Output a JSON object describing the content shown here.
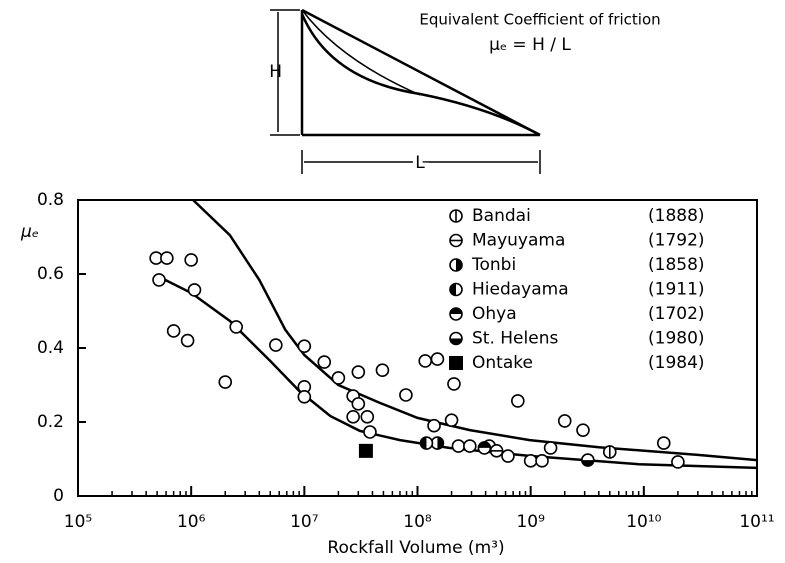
{
  "diagram": {
    "title": "Equivalent Coefficient of friction",
    "formula": "μₑ = H / L",
    "height_label": "H",
    "length_label": "L"
  },
  "chart_data": {
    "type": "scatter",
    "x_label": "Rockfall Volume (m³)",
    "y_label": "μₑ",
    "xlog": true,
    "xlim": [
      100000,
      100000000000
    ],
    "xticks": [
      {
        "value": 100000,
        "label": "10⁵"
      },
      {
        "value": 1000000,
        "label": "10⁶"
      },
      {
        "value": 10000000,
        "label": "10⁷"
      },
      {
        "value": 100000000,
        "label": "10⁸"
      },
      {
        "value": 1000000000,
        "label": "10⁹"
      },
      {
        "value": 10000000000,
        "label": "10¹⁰"
      },
      {
        "value": 100000000000,
        "label": "10¹¹"
      }
    ],
    "ylim": [
      0,
      0.8
    ],
    "yticks": [
      0,
      0.2,
      0.4,
      0.6,
      0.8
    ],
    "legend": "upper right",
    "series": [
      {
        "marker": "circle",
        "color": "#000000",
        "x": [
          490000,
          610000,
          520000,
          1000000,
          1070000,
          700000,
          930000,
          2000000,
          2500000,
          5600000,
          10000000,
          10000000,
          10000000,
          15000000,
          20000000,
          27000000,
          30000000,
          30000000,
          27000000,
          36000000,
          38000000,
          49000000,
          79000000,
          117000000,
          150000000,
          210000000,
          140000000,
          200000000,
          230000000,
          290000000,
          430000000,
          630000000,
          770000000,
          1000000000,
          1260000000,
          1500000000,
          2000000000,
          2900000000,
          15000000000,
          20000000000
        ],
        "values": [
          0.643,
          0.643,
          0.584,
          0.638,
          0.557,
          0.446,
          0.42,
          0.308,
          0.457,
          0.408,
          0.405,
          0.295,
          0.268,
          0.362,
          0.319,
          0.27,
          0.335,
          0.249,
          0.214,
          0.214,
          0.173,
          0.34,
          0.273,
          0.365,
          0.37,
          0.303,
          0.19,
          0.205,
          0.135,
          0.135,
          0.135,
          0.108,
          0.257,
          0.095,
          0.095,
          0.13,
          0.203,
          0.178,
          0.143,
          0.092
        ]
      },
      {
        "name": "Bandai",
        "year": "(1888)",
        "marker": "circle-vline",
        "color": "#000000",
        "x": [
          5000000000
        ],
        "values": [
          0.119
        ]
      },
      {
        "name": "Mayuyama",
        "year": "(1792)",
        "marker": "circle-hline",
        "color": "#000000",
        "x": [
          500000000
        ],
        "values": [
          0.122
        ]
      },
      {
        "name": "Tonbi",
        "year": "(1858)",
        "marker": "half-right",
        "color": "#000000",
        "x": [
          150000000
        ],
        "values": [
          0.143
        ]
      },
      {
        "name": "Hiedayama",
        "year": "(1911)",
        "marker": "half-left",
        "color": "#000000",
        "x": [
          120000000
        ],
        "values": [
          0.143
        ]
      },
      {
        "name": "Ohya",
        "year": "(1702)",
        "marker": "half-top",
        "color": "#000000",
        "x": [
          390000000
        ],
        "values": [
          0.13
        ]
      },
      {
        "name": "St. Helens",
        "year": "(1980)",
        "marker": "half-bottom",
        "color": "#000000",
        "x": [
          3200000000
        ],
        "values": [
          0.097
        ]
      },
      {
        "name": "Ontake",
        "year": "(1984)",
        "marker": "square",
        "color": "#000000",
        "x": [
          35000000
        ],
        "values": [
          0.122
        ]
      }
    ],
    "curves": [
      {
        "color": "#000000",
        "x": [
          1040000,
          2200000,
          4000000,
          6800000,
          10000000,
          20000000,
          47000000,
          100000000,
          290000000,
          980000000,
          4000000000,
          30000000000,
          100000000000
        ],
        "values": [
          0.8,
          0.705,
          0.584,
          0.449,
          0.381,
          0.3,
          0.251,
          0.211,
          0.178,
          0.151,
          0.132,
          0.111,
          0.097
        ]
      },
      {
        "color": "#000000",
        "x": [
          500000,
          1000000,
          2200000,
          5000000,
          9000000,
          17000000,
          31000000,
          70000000,
          190000000,
          1000000000,
          9000000000,
          100000000000
        ],
        "values": [
          0.595,
          0.549,
          0.473,
          0.365,
          0.284,
          0.216,
          0.176,
          0.151,
          0.13,
          0.108,
          0.086,
          0.076
        ]
      }
    ]
  }
}
